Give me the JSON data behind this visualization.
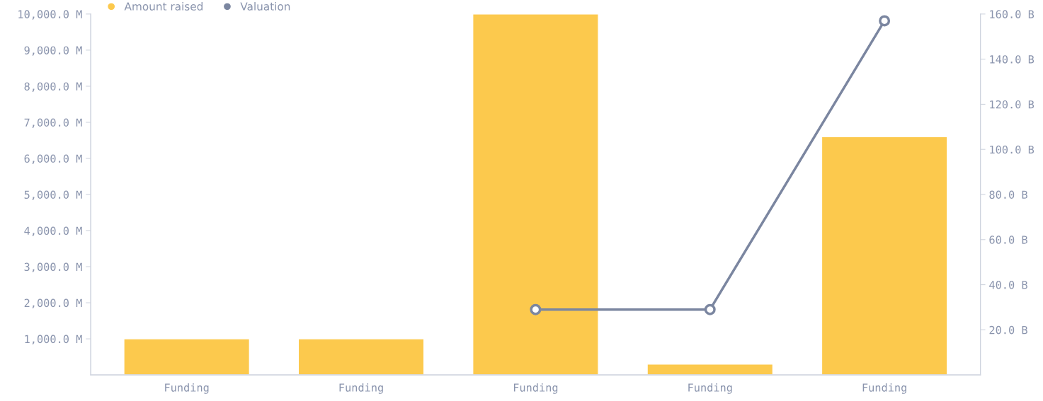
{
  "chart_data": {
    "type": "bar",
    "categories": [
      "Funding",
      "Funding",
      "Funding",
      "Funding",
      "Funding"
    ],
    "series": [
      {
        "name": "Amount raised",
        "color": "#fcc94d",
        "values": [
          1000,
          1000,
          10000,
          300,
          6600
        ]
      },
      {
        "name": "Valuation",
        "type": "line",
        "axis": "y2",
        "color": "#7b86a0",
        "values": [
          null,
          null,
          29,
          29,
          157
        ],
        "marker": "circle"
      }
    ],
    "ylim": [
      0,
      10000
    ],
    "yticks": [
      {
        "value": 1000,
        "label": "1,000.0 M"
      },
      {
        "value": 2000,
        "label": "2,000.0 M"
      },
      {
        "value": 3000,
        "label": "3,000.0 M"
      },
      {
        "value": 4000,
        "label": "4,000.0 M"
      },
      {
        "value": 5000,
        "label": "5,000.0 M"
      },
      {
        "value": 6000,
        "label": "6,000.0 M"
      },
      {
        "value": 7000,
        "label": "7,000.0 M"
      },
      {
        "value": 8000,
        "label": "8,000.0 M"
      },
      {
        "value": 9000,
        "label": "9,000.0 M"
      },
      {
        "value": 10000,
        "label": "10,000.0 M"
      }
    ],
    "y2lim": [
      0,
      160
    ],
    "y2ticks": [
      {
        "value": 20,
        "label": "20.0 B"
      },
      {
        "value": 40,
        "label": "40.0 B"
      },
      {
        "value": 60,
        "label": "60.0 B"
      },
      {
        "value": 80,
        "label": "80.0 B"
      },
      {
        "value": 100,
        "label": "100.0 B"
      },
      {
        "value": 120,
        "label": "120.0 B"
      },
      {
        "value": 140,
        "label": "140.0 B"
      },
      {
        "value": 160,
        "label": "160.0 B"
      }
    ],
    "grid": false,
    "legend": "top left"
  }
}
